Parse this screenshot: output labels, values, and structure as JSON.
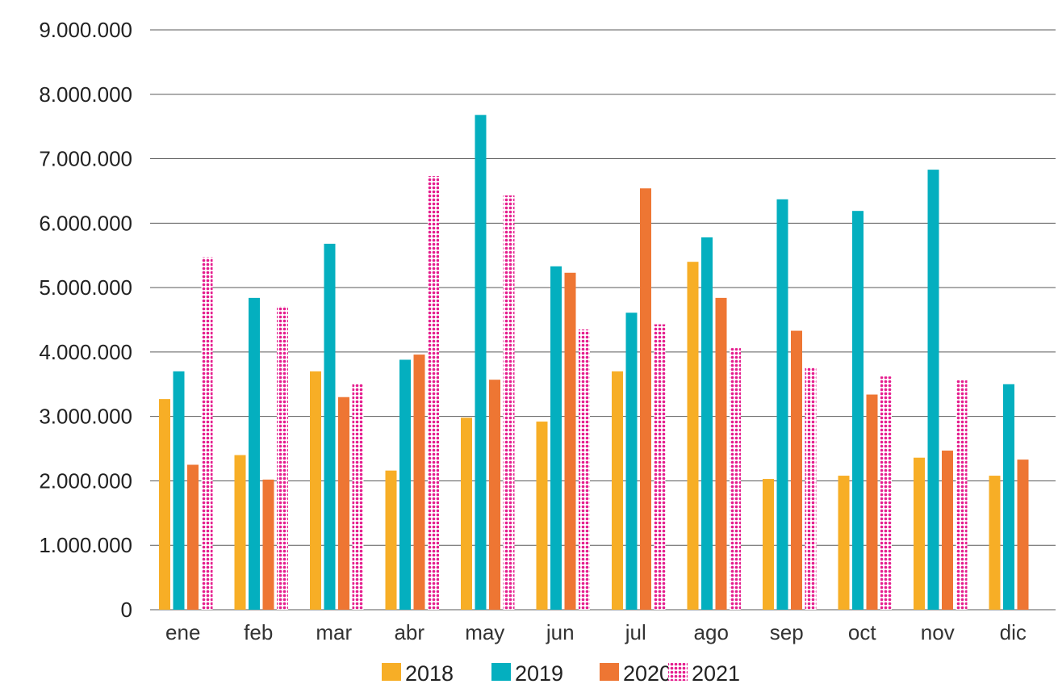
{
  "chart_data": {
    "type": "bar",
    "title": "",
    "xlabel": "",
    "ylabel": "",
    "ylim": [
      0,
      9000000
    ],
    "yticks": [
      0,
      1000000,
      2000000,
      3000000,
      4000000,
      5000000,
      6000000,
      7000000,
      8000000,
      9000000
    ],
    "ytick_labels": [
      "0",
      "1.000.000",
      "2.000.000",
      "3.000.000",
      "4.000.000",
      "5.000.000",
      "6.000.000",
      "7.000.000",
      "8.000.000",
      "9.000.000"
    ],
    "grid": true,
    "legend_position": "bottom",
    "categories": [
      "ene",
      "feb",
      "mar",
      "abr",
      "may",
      "jun",
      "jul",
      "ago",
      "sep",
      "oct",
      "nov",
      "dic"
    ],
    "series": [
      {
        "name": "2018",
        "color": "#F7AE26",
        "pattern": "solid",
        "values": [
          3270000,
          2400000,
          3700000,
          2160000,
          2980000,
          2920000,
          3700000,
          5400000,
          2030000,
          2080000,
          2360000,
          2080000
        ]
      },
      {
        "name": "2019",
        "color": "#04AFBF",
        "pattern": "solid",
        "values": [
          3700000,
          4840000,
          5680000,
          3880000,
          7680000,
          5330000,
          4610000,
          5780000,
          6370000,
          6190000,
          6830000,
          3500000
        ]
      },
      {
        "name": "2020",
        "color": "#EE7633",
        "pattern": "solid",
        "values": [
          2250000,
          2020000,
          3300000,
          3960000,
          3570000,
          5230000,
          6540000,
          4840000,
          4330000,
          3340000,
          2470000,
          2330000
        ]
      },
      {
        "name": "2021",
        "color": "#E51D8E",
        "pattern": "dotted",
        "values": [
          5470000,
          4710000,
          3500000,
          6730000,
          6430000,
          4350000,
          4430000,
          4060000,
          3760000,
          3620000,
          3560000,
          null
        ]
      }
    ]
  }
}
